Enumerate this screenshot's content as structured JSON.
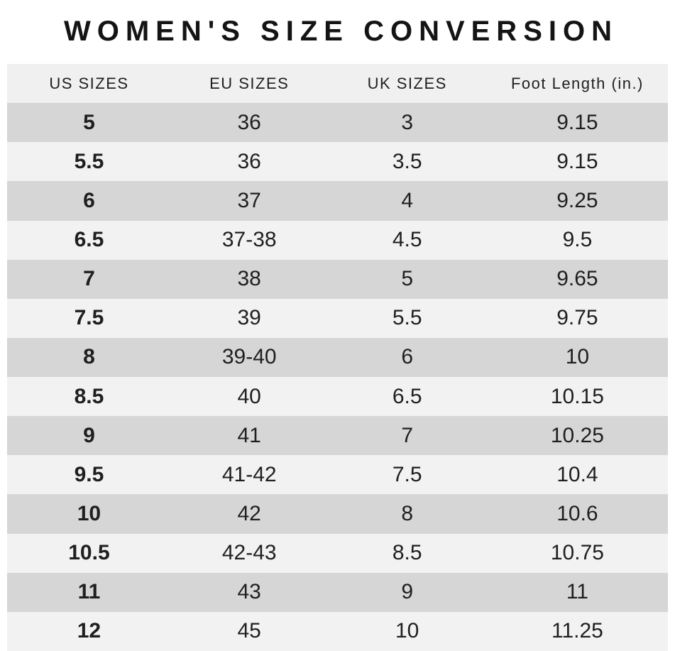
{
  "chart_data": {
    "type": "table",
    "title": "WOMEN'S SIZE CONVERSION",
    "columns": [
      "US SIZES",
      "EU SIZES",
      "UK SIZES",
      "Foot Length (in.)"
    ],
    "rows": [
      [
        "5",
        "36",
        "3",
        "9.15"
      ],
      [
        "5.5",
        "36",
        "3.5",
        "9.15"
      ],
      [
        "6",
        "37",
        "4",
        "9.25"
      ],
      [
        "6.5",
        "37-38",
        "4.5",
        "9.5"
      ],
      [
        "7",
        "38",
        "5",
        "9.65"
      ],
      [
        "7.5",
        "39",
        "5.5",
        "9.75"
      ],
      [
        "8",
        "39-40",
        "6",
        "10"
      ],
      [
        "8.5",
        "40",
        "6.5",
        "10.15"
      ],
      [
        "9",
        "41",
        "7",
        "10.25"
      ],
      [
        "9.5",
        "41-42",
        "7.5",
        "10.4"
      ],
      [
        "10",
        "42",
        "8",
        "10.6"
      ],
      [
        "10.5",
        "42-43",
        "8.5",
        "10.75"
      ],
      [
        "11",
        "43",
        "9",
        "11"
      ],
      [
        "12",
        "45",
        "10",
        "11.25"
      ]
    ],
    "layout": {
      "first_data_row_shade": "dark",
      "row_alternation": "dark/light",
      "grid": "off"
    }
  },
  "colors": {
    "page_bg": "#ffffff",
    "header_bg": "#f0f0f0",
    "row_dark": "#d6d6d6",
    "row_light": "#f2f2f2",
    "text": "#1f1f1f"
  }
}
